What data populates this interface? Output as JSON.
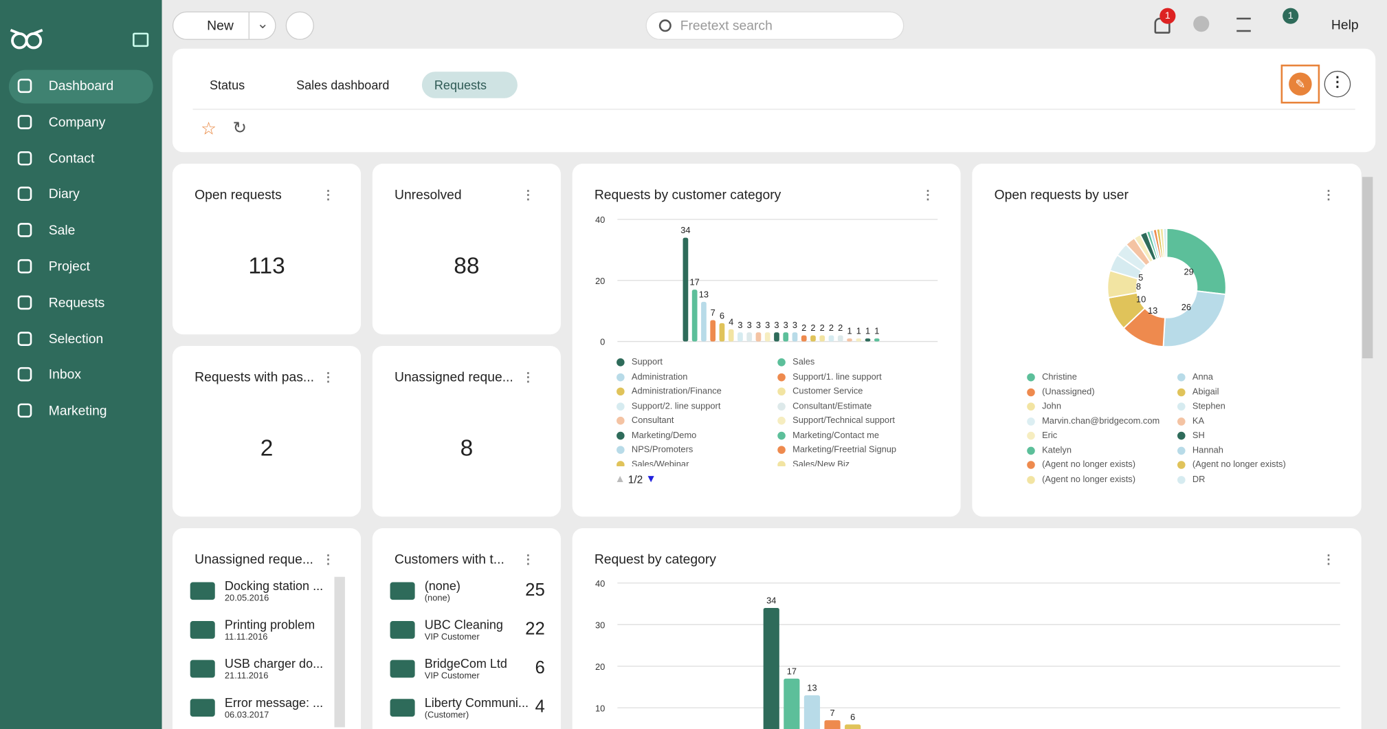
{
  "sidebar": {
    "items": [
      "Dashboard",
      "Company",
      "Contact",
      "Diary",
      "Sale",
      "Project",
      "Requests",
      "Selection",
      "Inbox",
      "Marketing"
    ]
  },
  "topbar": {
    "new": "New",
    "search": "Freetext search",
    "notifications": "1",
    "tips": "1",
    "help": "Help"
  },
  "tabs": [
    "Status",
    "Sales dashboard",
    "Requests"
  ],
  "widgets": {
    "kpis": [
      {
        "title": "Open requests",
        "value": 113
      },
      {
        "title": "Unresolved",
        "value": 88
      },
      {
        "title": "Requests with pas...",
        "value": 2
      },
      {
        "title": "Unassigned reque...",
        "value": 8
      }
    ]
  },
  "requests_list": {
    "title": "Unassigned reque...",
    "items": [
      {
        "title": "Docking station ...",
        "date": "20.05.2016"
      },
      {
        "title": "Printing problem",
        "date": "11.11.2016"
      },
      {
        "title": "USB charger do...",
        "date": "21.11.2016"
      },
      {
        "title": "Error message: ...",
        "date": "06.03.2017"
      }
    ]
  },
  "customers_list": {
    "title": "Customers with t...",
    "items": [
      {
        "name": "(none)",
        "type": "(none)",
        "count": 25
      },
      {
        "name": "UBC Cleaning",
        "type": "VIP Customer",
        "count": 22
      },
      {
        "name": "BridgeCom Ltd",
        "type": "VIP Customer",
        "count": 6
      },
      {
        "name": "Liberty Communi...",
        "type": "(Customer)",
        "count": 4
      }
    ]
  },
  "chart_data": [
    {
      "type": "bar",
      "title": "Requests by customer category",
      "ylim": [
        0,
        40
      ],
      "yticks": [
        0,
        20,
        40
      ],
      "legend_page": "1/2",
      "categories": [
        "Support",
        "Sales",
        "Administration",
        "Support/1. line support",
        "Administration/Finance",
        "Customer Service",
        "Support/2. line support",
        "Consultant/Estimate",
        "Consultant",
        "Support/Technical support",
        "Marketing/Demo",
        "Marketing/Contact me",
        "NPS/Promoters",
        "Marketing/Freetrial Signup",
        "Sales/Webinar",
        "Sales/New Biz",
        null,
        null,
        null,
        null,
        null,
        null
      ],
      "values": [
        34,
        17,
        13,
        7,
        6,
        4,
        3,
        3,
        3,
        3,
        3,
        3,
        3,
        2,
        2,
        2,
        2,
        2,
        1,
        1,
        1,
        1
      ],
      "colors": [
        "#2e6b5a",
        "#5cbf9a",
        "#b8dbe8",
        "#ee8a4e",
        "#e0c35a",
        "#f2e4a2",
        "#d6ebf0",
        "#dde9ea",
        "#f4c3a3",
        "#f6edc0",
        "#2e6b5a",
        "#5cbf9a",
        "#b8dbe8",
        "#ee8a4e",
        "#e0c35a",
        "#f2e4a2",
        "#d6ebf0",
        "#dde9ea",
        "#f4c3a3",
        "#f6edc0",
        "#2e6b5a",
        "#5cbf9a"
      ]
    },
    {
      "type": "pie",
      "title": "Open requests by user",
      "categories": [
        "Christine",
        "Anna",
        "(Unassigned)",
        "Abigail",
        "John",
        "Stephen",
        "Marvin.chan@bridgecom.com",
        "KA",
        "Eric",
        "SH",
        "Katelyn",
        "Hannah",
        "(Agent no longer exists)",
        "(Agent no longer exists)",
        "(Agent no longer exists)",
        "DR"
      ],
      "values": [
        29,
        26,
        13,
        10,
        8,
        5,
        4,
        3,
        2,
        2,
        1,
        1,
        1,
        1,
        1,
        1
      ],
      "colors": [
        "#5cbf9a",
        "#b8dbe8",
        "#ee8a4e",
        "#e0c35a",
        "#f2e4a2",
        "#d6ebf0",
        "#dceef2",
        "#f4c3a3",
        "#f6edc0",
        "#2e6b5a",
        "#5cbf9a",
        "#b8dbe8",
        "#ee8a4e",
        "#e0c35a",
        "#f2e4a2",
        "#d6ebf0"
      ]
    },
    {
      "type": "bar",
      "title": "Request by category",
      "ylim": [
        0,
        40
      ],
      "yticks": [
        10,
        20,
        30,
        40
      ],
      "categories": [
        null,
        null,
        null,
        null,
        null
      ],
      "values": [
        34,
        17,
        13,
        7,
        6
      ],
      "colors": [
        "#2e6b5a",
        "#5cbf9a",
        "#b8dbe8",
        "#ee8a4e",
        "#e0c35a"
      ]
    }
  ]
}
